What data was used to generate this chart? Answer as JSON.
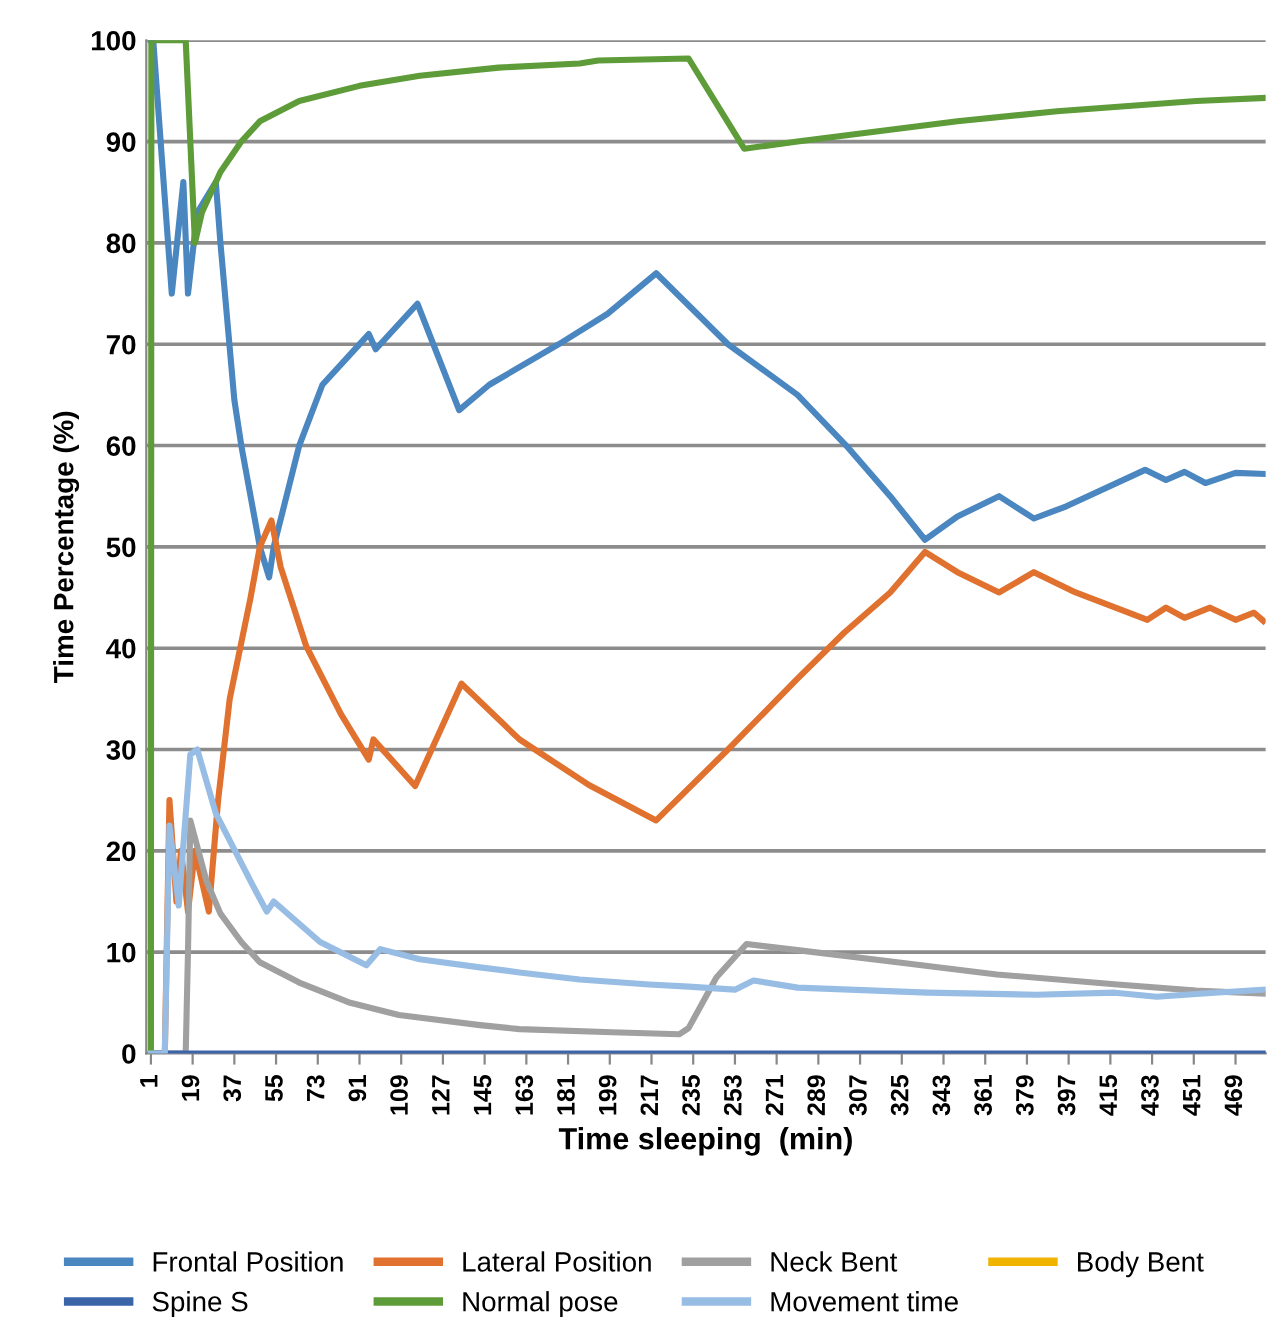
{
  "chart_data": {
    "type": "line",
    "xlabel": "Time sleeping  (min)",
    "ylabel": "Time Percentage (%)",
    "xlim": [
      -1,
      482
    ],
    "ylim": [
      0,
      100
    ],
    "xticks": [
      1,
      19,
      37,
      55,
      73,
      91,
      109,
      127,
      145,
      163,
      181,
      199,
      217,
      235,
      253,
      271,
      289,
      307,
      325,
      343,
      361,
      379,
      397,
      415,
      433,
      451,
      469
    ],
    "yticks": [
      0,
      10,
      20,
      30,
      40,
      50,
      60,
      70,
      80,
      90,
      100
    ],
    "grid": "y",
    "legend": "bottom",
    "marker": "none",
    "line_style": "solid",
    "series": [
      {
        "name": "Frontal Position",
        "color": "#4a86c0",
        "x": [
          1,
          2,
          10,
          15,
          17,
          21,
          29,
          31,
          37,
          40,
          44,
          48,
          52,
          54,
          65,
          75,
          87,
          95,
          98,
          108,
          116,
          134,
          147,
          177,
          198,
          219,
          250,
          280,
          301,
          320,
          335,
          349,
          367,
          382,
          396,
          430,
          439,
          447,
          456,
          469,
          481
        ],
        "values": [
          100,
          100,
          75,
          86,
          75,
          83,
          86,
          80,
          64.5,
          60,
          55,
          50,
          47,
          50,
          60,
          66,
          69,
          71,
          69.5,
          72,
          74,
          63.5,
          66,
          70,
          73,
          77,
          70,
          65,
          60,
          55,
          50.7,
          53,
          55,
          52.8,
          54,
          57.6,
          56.6,
          57.4,
          56.3,
          57.3,
          57.2
        ]
      },
      {
        "name": "Lateral Position",
        "color": "#e0712e",
        "x": [
          1,
          7,
          9,
          12,
          14,
          17,
          20,
          26,
          30,
          35,
          44,
          48,
          53,
          57,
          68,
          83,
          95,
          97,
          115,
          135,
          160,
          190,
          219,
          250,
          280,
          300,
          320,
          335,
          349,
          367,
          382,
          400,
          431,
          439,
          447,
          458,
          469,
          477,
          481
        ],
        "values": [
          0,
          0,
          25,
          15,
          20,
          14,
          20,
          14,
          25,
          35,
          45,
          50,
          52.6,
          48,
          40.2,
          33.5,
          29,
          31,
          26.4,
          36.5,
          31,
          26.5,
          23,
          30,
          37,
          41.5,
          45.5,
          49.5,
          47.5,
          45.5,
          47.5,
          45.5,
          42.8,
          44,
          43,
          44,
          42.8,
          43.5,
          42.7
        ]
      },
      {
        "name": "Neck Bent",
        "color": "#a0a0a0",
        "x": [
          1,
          16,
          17,
          18,
          25,
          31,
          40,
          48,
          65,
          87,
          108,
          143,
          160,
          200,
          229,
          233,
          245,
          258,
          280,
          323,
          366,
          418,
          452,
          481
        ],
        "values": [
          0,
          0,
          10,
          23,
          17,
          13.8,
          11,
          9,
          7,
          5,
          3.8,
          2.8,
          2.4,
          2.1,
          1.9,
          2.5,
          7.5,
          10.8,
          10.2,
          9,
          7.8,
          6.8,
          6.2,
          5.9
        ]
      },
      {
        "name": "Body Bent",
        "color": "#f0b400"
      },
      {
        "name": "Spine S",
        "color": "#3a65a8",
        "x": [
          1,
          481
        ],
        "values": [
          0,
          0
        ]
      },
      {
        "name": "Normal pose",
        "color": "#5e9c3a",
        "x": [
          1,
          1.2,
          16,
          20,
          23,
          31,
          40,
          48,
          65,
          91,
          117,
          151,
          186,
          194,
          233,
          257,
          280,
          314,
          349,
          392,
          452,
          481
        ],
        "values": [
          0,
          100,
          100,
          80,
          83,
          87,
          90,
          92,
          94,
          95.5,
          96.5,
          97.3,
          97.7,
          98,
          98.2,
          89.3,
          90,
          91,
          92,
          93,
          94,
          94.3
        ]
      },
      {
        "name": "Movement time",
        "color": "#98bde4",
        "x": [
          1,
          7,
          9,
          13,
          18,
          21,
          29,
          44,
          51,
          54,
          74,
          94,
          100,
          117,
          143,
          160,
          186,
          216,
          233,
          253,
          261,
          280,
          336,
          383,
          417,
          435,
          460,
          481
        ],
        "values": [
          0,
          0,
          22.5,
          14.6,
          29.5,
          30,
          23.7,
          17,
          14,
          15,
          11,
          8.7,
          10.3,
          9.3,
          8.5,
          8,
          7.3,
          6.8,
          6.6,
          6.3,
          7.2,
          6.5,
          6,
          5.8,
          6,
          5.6,
          6,
          6.3
        ]
      }
    ]
  }
}
